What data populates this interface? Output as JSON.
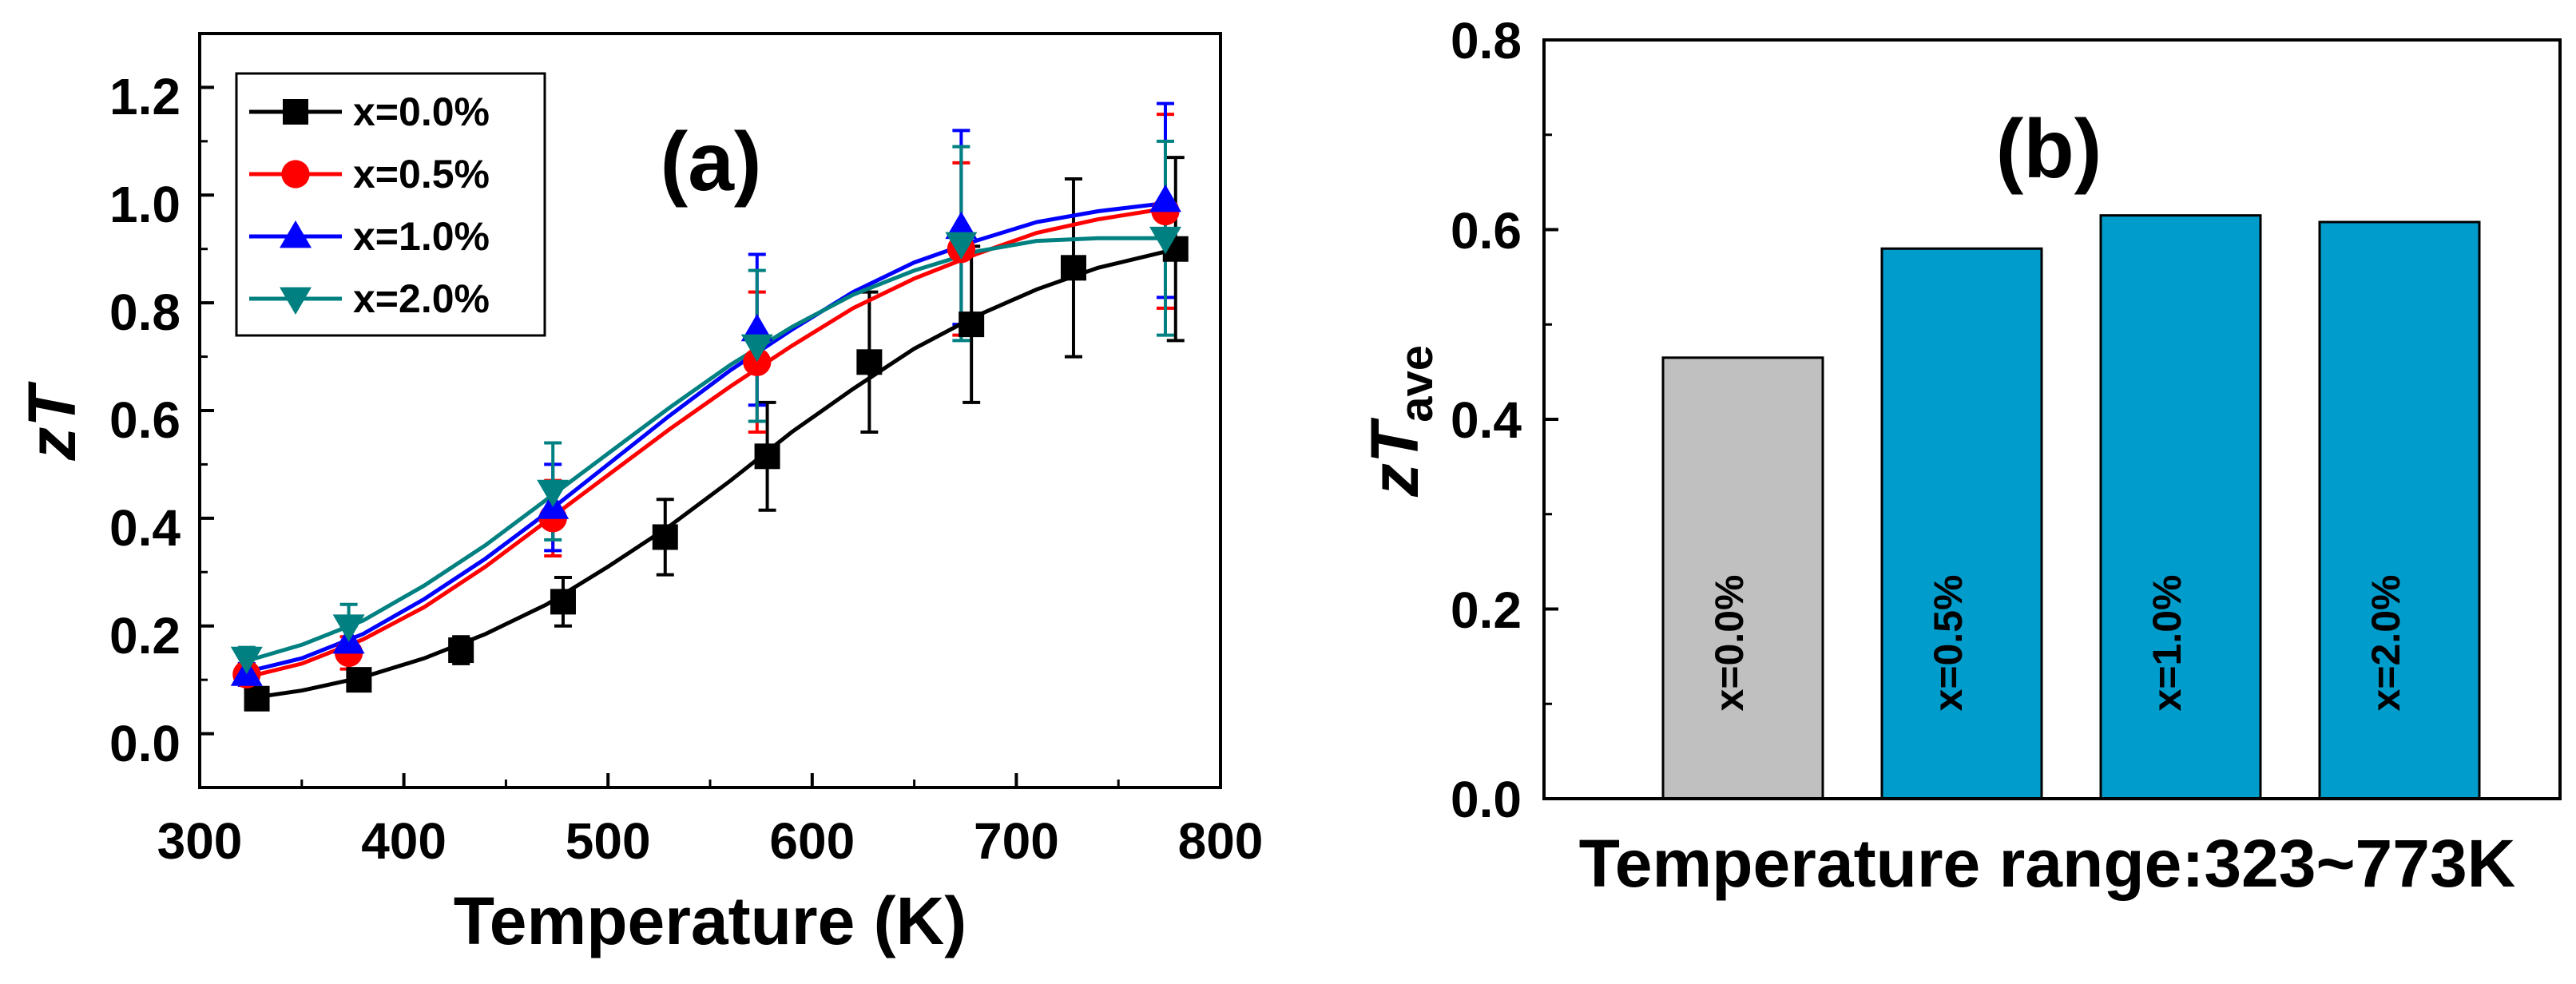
{
  "chart_data": [
    {
      "type": "line",
      "panel_label": "(a)",
      "xlabel": "Temperature (K)",
      "ylabel_main": "zT",
      "xlim": [
        300,
        800
      ],
      "ylim": [
        -0.1,
        1.3
      ],
      "xticks": [
        300,
        400,
        500,
        600,
        700,
        800
      ],
      "yticks": [
        0.0,
        0.2,
        0.4,
        0.6,
        0.8,
        1.0,
        1.2
      ],
      "xtick_labels": [
        "300",
        "400",
        "500",
        "600",
        "700",
        "800"
      ],
      "ytick_labels": [
        "0.0",
        "0.2",
        "0.4",
        "0.6",
        "0.8",
        "1.0",
        "1.2"
      ],
      "legend_position": "top-left",
      "series": [
        {
          "name": "x=0.0%",
          "color": "#000000",
          "marker": "square",
          "x": [
            328,
            378,
            428,
            478,
            528,
            578,
            628,
            678,
            728,
            778
          ],
          "y": [
            0.065,
            0.1,
            0.155,
            0.245,
            0.365,
            0.515,
            0.69,
            0.76,
            0.865,
            0.9
          ],
          "err": [
            0.015,
            0.02,
            0.025,
            0.045,
            0.07,
            0.1,
            0.13,
            0.145,
            0.165,
            0.17
          ],
          "fit_x": [
            323,
            350,
            380,
            410,
            440,
            470,
            500,
            530,
            560,
            590,
            620,
            650,
            680,
            710,
            740,
            773
          ],
          "fit_y": [
            0.065,
            0.08,
            0.105,
            0.14,
            0.185,
            0.24,
            0.31,
            0.385,
            0.47,
            0.56,
            0.64,
            0.715,
            0.775,
            0.825,
            0.865,
            0.895
          ]
        },
        {
          "name": "x=0.5%",
          "color": "#ff0000",
          "marker": "circle",
          "x": [
            323,
            373,
            473,
            573,
            673,
            773
          ],
          "y": [
            0.11,
            0.15,
            0.4,
            0.69,
            0.9,
            0.97
          ],
          "err": [
            0.02,
            0.03,
            0.07,
            0.13,
            0.16,
            0.18
          ],
          "fit_x": [
            323,
            350,
            380,
            410,
            440,
            470,
            500,
            530,
            560,
            590,
            620,
            650,
            680,
            710,
            740,
            773
          ],
          "fit_y": [
            0.105,
            0.13,
            0.175,
            0.235,
            0.31,
            0.395,
            0.48,
            0.565,
            0.645,
            0.72,
            0.79,
            0.845,
            0.89,
            0.93,
            0.955,
            0.975
          ]
        },
        {
          "name": "x=1.0%",
          "color": "#0000ff",
          "marker": "triangle-up",
          "x": [
            323,
            373,
            473,
            573,
            673,
            773
          ],
          "y": [
            0.11,
            0.17,
            0.42,
            0.75,
            0.94,
            0.99
          ],
          "err": [
            0.02,
            0.03,
            0.08,
            0.14,
            0.18,
            0.18
          ],
          "fit_x": [
            323,
            350,
            380,
            410,
            440,
            470,
            500,
            530,
            560,
            590,
            620,
            650,
            680,
            710,
            740,
            773
          ],
          "fit_y": [
            0.115,
            0.14,
            0.185,
            0.25,
            0.325,
            0.41,
            0.5,
            0.59,
            0.675,
            0.75,
            0.82,
            0.875,
            0.915,
            0.95,
            0.97,
            0.985
          ]
        },
        {
          "name": "x=2.0%",
          "color": "#008080",
          "marker": "triangle-down",
          "x": [
            323,
            373,
            473,
            573,
            673,
            773
          ],
          "y": [
            0.14,
            0.2,
            0.45,
            0.72,
            0.91,
            0.92
          ],
          "err": [
            0.02,
            0.04,
            0.09,
            0.14,
            0.18,
            0.18
          ],
          "fit_x": [
            323,
            350,
            380,
            410,
            440,
            470,
            500,
            530,
            560,
            590,
            620,
            650,
            680,
            710,
            740,
            773
          ],
          "fit_y": [
            0.135,
            0.165,
            0.21,
            0.275,
            0.35,
            0.435,
            0.52,
            0.605,
            0.685,
            0.755,
            0.815,
            0.86,
            0.895,
            0.915,
            0.92,
            0.92
          ]
        }
      ]
    },
    {
      "type": "bar",
      "panel_label": "(b)",
      "categories": [
        "x=0.0%",
        "x=0.5%",
        "x=1.0%",
        "x=2.0%"
      ],
      "values": [
        0.465,
        0.58,
        0.615,
        0.608
      ],
      "colors": [
        "#c0c0c0",
        "#009ccc",
        "#009ccc",
        "#009ccc"
      ],
      "xlabel": "Temperature range:323~773K",
      "ylabel_main": "zT",
      "ylabel_sub": "ave",
      "ylim": [
        0.0,
        0.8
      ],
      "yticks": [
        0.0,
        0.2,
        0.4,
        0.6,
        0.8
      ],
      "ytick_labels": [
        "0.0",
        "0.2",
        "0.4",
        "0.6",
        "0.8"
      ]
    }
  ]
}
